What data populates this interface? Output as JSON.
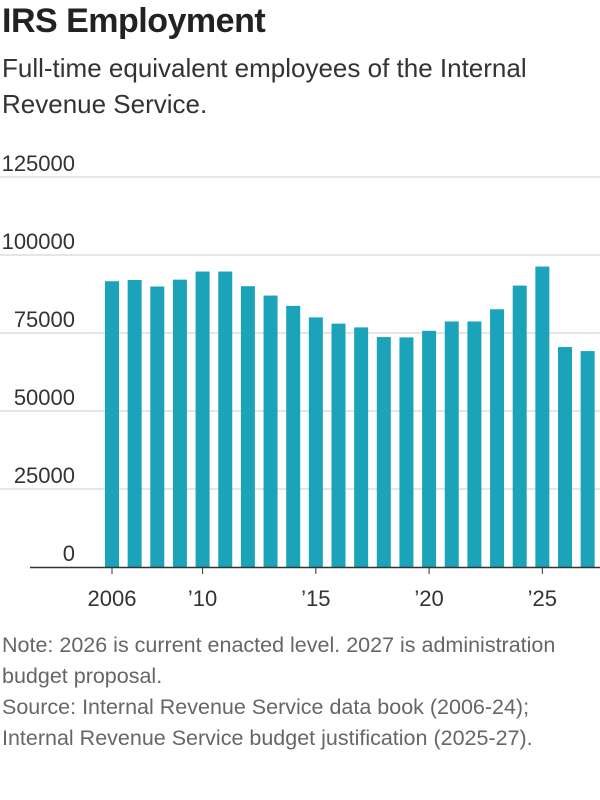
{
  "title": "IRS Employment",
  "subtitle": "Full-time equivalent employees of the Internal Revenue Service.",
  "note": "Note: 2026 is current enacted level. 2027 is administration budget proposal.",
  "source": "Source: Internal Revenue Service data book (2006-24); Internal Revenue Service budget justification (2025-27).",
  "colors": {
    "bar": "#1ba3ba",
    "grid": "#cccccc",
    "axis": "#333333"
  },
  "chart_data": {
    "type": "bar",
    "title": "IRS Employment",
    "xlabel": "",
    "ylabel": "",
    "ylim": [
      0,
      125000
    ],
    "yticks": [
      0,
      25000,
      50000,
      75000,
      100000,
      125000
    ],
    "ytick_labels": [
      "0",
      "25000",
      "50000",
      "75000",
      "100000",
      "125000"
    ],
    "grid": true,
    "categories": [
      2006,
      2007,
      2008,
      2009,
      2010,
      2011,
      2012,
      2013,
      2014,
      2015,
      2016,
      2017,
      2018,
      2019,
      2020,
      2021,
      2022,
      2023,
      2024,
      2025,
      2026,
      2027
    ],
    "values": [
      91600,
      92000,
      89900,
      92100,
      94700,
      94700,
      90000,
      87000,
      83700,
      80000,
      78000,
      76800,
      73700,
      73600,
      75700,
      78700,
      78700,
      82600,
      90200,
      96300,
      70500,
      69200
    ],
    "xticks": [
      {
        "year": 2006,
        "label": "2006"
      },
      {
        "year": 2010,
        "label": "’10"
      },
      {
        "year": 2015,
        "label": "’15"
      },
      {
        "year": 2020,
        "label": "’20"
      },
      {
        "year": 2025,
        "label": "’25"
      }
    ]
  }
}
